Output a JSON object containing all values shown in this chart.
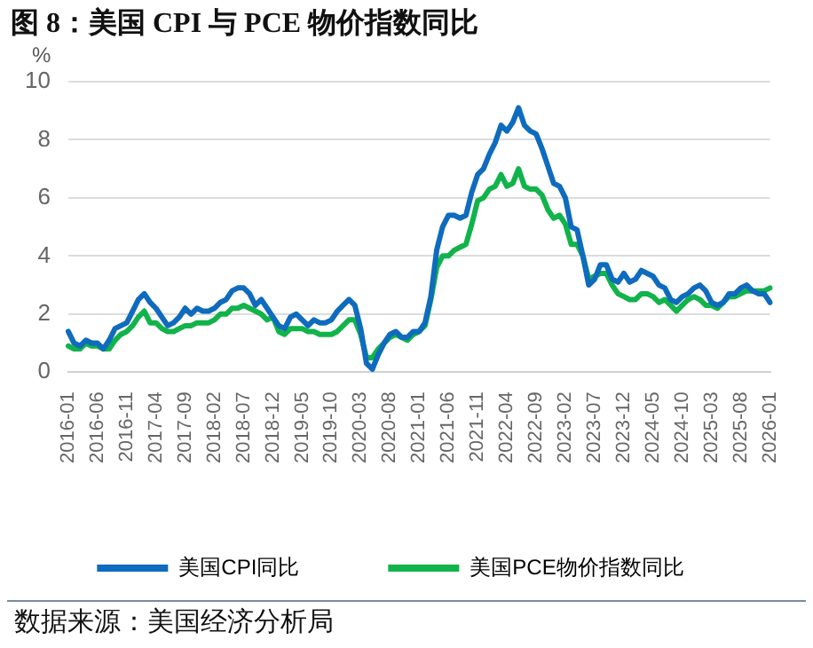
{
  "chart_data": {
    "type": "line",
    "title": "图 8：美国 CPI 与 PCE 物价指数同比",
    "ylabel": "%",
    "categories": [
      "2016-01",
      null,
      null,
      null,
      null,
      "2016-06",
      null,
      null,
      null,
      null,
      "2016-11",
      null,
      null,
      null,
      null,
      "2017-04",
      null,
      null,
      null,
      null,
      "2017-09",
      null,
      null,
      null,
      null,
      "2018-02",
      null,
      null,
      null,
      null,
      "2018-07",
      null,
      null,
      null,
      null,
      "2018-12",
      null,
      null,
      null,
      null,
      "2019-05",
      null,
      null,
      null,
      null,
      "2019-10",
      null,
      null,
      null,
      null,
      "2020-03",
      null,
      null,
      null,
      null,
      "2020-08",
      null,
      null,
      null,
      null,
      "2021-01",
      null,
      null,
      null,
      null,
      "2021-06",
      null,
      null,
      null,
      null,
      "2021-11",
      null,
      null,
      null,
      null,
      "2022-04",
      null,
      null,
      null,
      null,
      "2022-09",
      null,
      null,
      null,
      null,
      "2023-02",
      null,
      null,
      null,
      null,
      "2023-07",
      null,
      null,
      null,
      null,
      "2023-12",
      null,
      null,
      null,
      null,
      "2024-05",
      null,
      null,
      null,
      null,
      "2024-10",
      null,
      null,
      null,
      null,
      "2025-03",
      null,
      null,
      null,
      null,
      "2025-08",
      null,
      null,
      null,
      null,
      "2026-01"
    ],
    "series": [
      {
        "name": "美国CPI同比",
        "color": "#0f6bbd",
        "values": [
          1.4,
          1.0,
          0.9,
          1.1,
          1.0,
          1.0,
          0.8,
          1.1,
          1.5,
          1.6,
          1.7,
          2.1,
          2.5,
          2.7,
          2.4,
          2.2,
          1.9,
          1.6,
          1.7,
          1.9,
          2.2,
          2.0,
          2.2,
          2.1,
          2.1,
          2.2,
          2.4,
          2.5,
          2.8,
          2.9,
          2.9,
          2.7,
          2.3,
          2.5,
          2.2,
          1.9,
          1.6,
          1.5,
          1.9,
          2.0,
          1.8,
          1.6,
          1.8,
          1.7,
          1.7,
          1.8,
          2.1,
          2.3,
          2.5,
          2.3,
          1.5,
          0.3,
          0.1,
          0.6,
          1.0,
          1.3,
          1.4,
          1.2,
          1.2,
          1.4,
          1.4,
          1.7,
          2.6,
          4.2,
          5.0,
          5.4,
          5.4,
          5.3,
          5.4,
          6.2,
          6.8,
          7.0,
          7.5,
          7.9,
          8.5,
          8.3,
          8.6,
          9.1,
          8.5,
          8.3,
          8.2,
          7.7,
          7.1,
          6.5,
          6.4,
          6.0,
          5.0,
          4.9,
          4.0,
          3.0,
          3.2,
          3.7,
          3.7,
          3.2,
          3.1,
          3.4,
          3.1,
          3.2,
          3.5,
          3.4,
          3.3,
          3.0,
          2.9,
          2.5,
          2.4,
          2.6,
          2.7,
          2.9,
          3.0,
          2.8,
          2.4,
          2.3,
          2.4,
          2.7,
          2.7,
          2.9,
          3.0,
          2.8,
          2.7,
          2.7,
          2.4
        ]
      },
      {
        "name": "美国PCE物价指数同比",
        "color": "#11b34a",
        "values": [
          0.9,
          0.8,
          0.8,
          1.0,
          0.9,
          0.9,
          0.8,
          0.8,
          1.1,
          1.3,
          1.4,
          1.6,
          1.9,
          2.1,
          1.7,
          1.7,
          1.5,
          1.4,
          1.4,
          1.5,
          1.6,
          1.6,
          1.7,
          1.7,
          1.7,
          1.8,
          2.0,
          2.0,
          2.2,
          2.2,
          2.3,
          2.2,
          2.1,
          2.0,
          1.8,
          1.9,
          1.4,
          1.3,
          1.5,
          1.5,
          1.5,
          1.4,
          1.4,
          1.3,
          1.3,
          1.3,
          1.4,
          1.6,
          1.8,
          1.8,
          1.3,
          0.5,
          0.5,
          0.8,
          1.0,
          1.2,
          1.3,
          1.2,
          1.1,
          1.3,
          1.4,
          1.6,
          2.5,
          3.6,
          4.0,
          4.0,
          4.2,
          4.3,
          4.4,
          5.1,
          5.9,
          6.0,
          6.3,
          6.4,
          6.8,
          6.4,
          6.5,
          7.0,
          6.4,
          6.3,
          6.3,
          6.1,
          5.6,
          5.3,
          5.4,
          5.1,
          4.4,
          4.4,
          4.0,
          3.2,
          3.3,
          3.4,
          3.4,
          3.0,
          2.7,
          2.6,
          2.5,
          2.5,
          2.7,
          2.7,
          2.6,
          2.4,
          2.5,
          2.3,
          2.1,
          2.3,
          2.5,
          2.6,
          2.5,
          2.3,
          2.3,
          2.2,
          2.4,
          2.6,
          2.6,
          2.7,
          2.8,
          2.8,
          2.8,
          2.8,
          2.9
        ]
      }
    ],
    "ylim": [
      0,
      10
    ],
    "yticks": [
      0,
      2,
      4,
      6,
      8,
      10
    ],
    "grid": "y",
    "legend": "bottom",
    "marker": "none",
    "line_style": "solid",
    "annotations": [
      "数据来源：美国经济分析局"
    ]
  }
}
